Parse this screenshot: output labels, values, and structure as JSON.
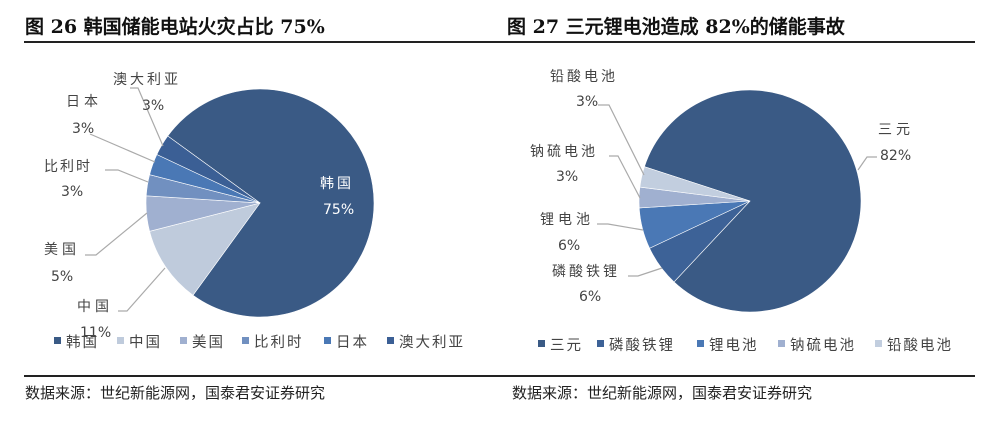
{
  "chart_data": [
    {
      "type": "pie",
      "title": "图 26 韩国储能电站火灾占比 75%",
      "categories": [
        "韩国",
        "中国",
        "美国",
        "比利时",
        "日本",
        "澳大利亚"
      ],
      "values": [
        75,
        11,
        5,
        3,
        3,
        3
      ],
      "labels": [
        "75%",
        "11%",
        "5%",
        "3%",
        "3%",
        "3%"
      ],
      "colors": [
        "#3a5a85",
        "#bfcbdc",
        "#a0b0d0",
        "#7190c0",
        "#4a78b5",
        "#3b5f95"
      ],
      "legend": "bottom",
      "source": "数据来源：世纪新能源网，国泰君安证券研究"
    },
    {
      "type": "pie",
      "title": "图 27 三元锂电池造成 82%的储能事故",
      "categories": [
        "三元",
        "磷酸铁锂",
        "锂电池",
        "钠硫电池",
        "铅酸电池"
      ],
      "values": [
        82,
        6,
        6,
        3,
        3
      ],
      "labels": [
        "82%",
        "6%",
        "6%",
        "3%",
        "3%"
      ],
      "colors": [
        "#3a5a85",
        "#3d6297",
        "#4a78b5",
        "#a0b0d0",
        "#c2cedf"
      ],
      "legend": "bottom",
      "source": "数据来源：世纪新能源网，国泰君安证券研究"
    }
  ]
}
